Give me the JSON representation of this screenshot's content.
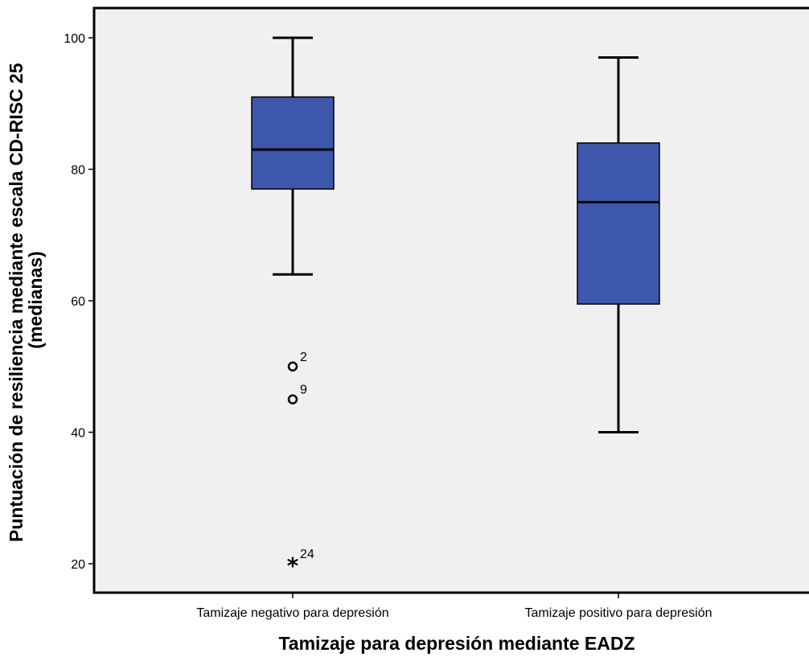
{
  "chart_data": {
    "type": "boxplot",
    "xlabel": "Tamizaje para depresión mediante EADZ",
    "ylabel_lines": [
      "Puntuación de resiliencia mediante escala CD-RISC 25",
      "(medianas)"
    ],
    "ylim": [
      15,
      105
    ],
    "yticks": [
      20,
      40,
      60,
      80,
      100
    ],
    "grid": false,
    "colors": {
      "box": "#3c57ab",
      "background": "#f0f0f0",
      "stroke": "#000000"
    },
    "categories": [
      "Tamizaje negativo para depresión",
      "Tamizaje positivo para depresión"
    ],
    "boxes": [
      {
        "category": "Tamizaje negativo para depresión",
        "whisker_low": 64,
        "q1": 77,
        "median": 83,
        "q3": 91,
        "whisker_high": 100,
        "outliers": [
          {
            "value": 50,
            "label": "2",
            "marker": "circle"
          },
          {
            "value": 45,
            "label": "9",
            "marker": "circle"
          },
          {
            "value": 20,
            "label": "24",
            "marker": "star"
          }
        ]
      },
      {
        "category": "Tamizaje positivo para depresión",
        "whisker_low": 40,
        "q1": 59.5,
        "median": 75,
        "q3": 84,
        "whisker_high": 97,
        "outliers": []
      }
    ]
  }
}
